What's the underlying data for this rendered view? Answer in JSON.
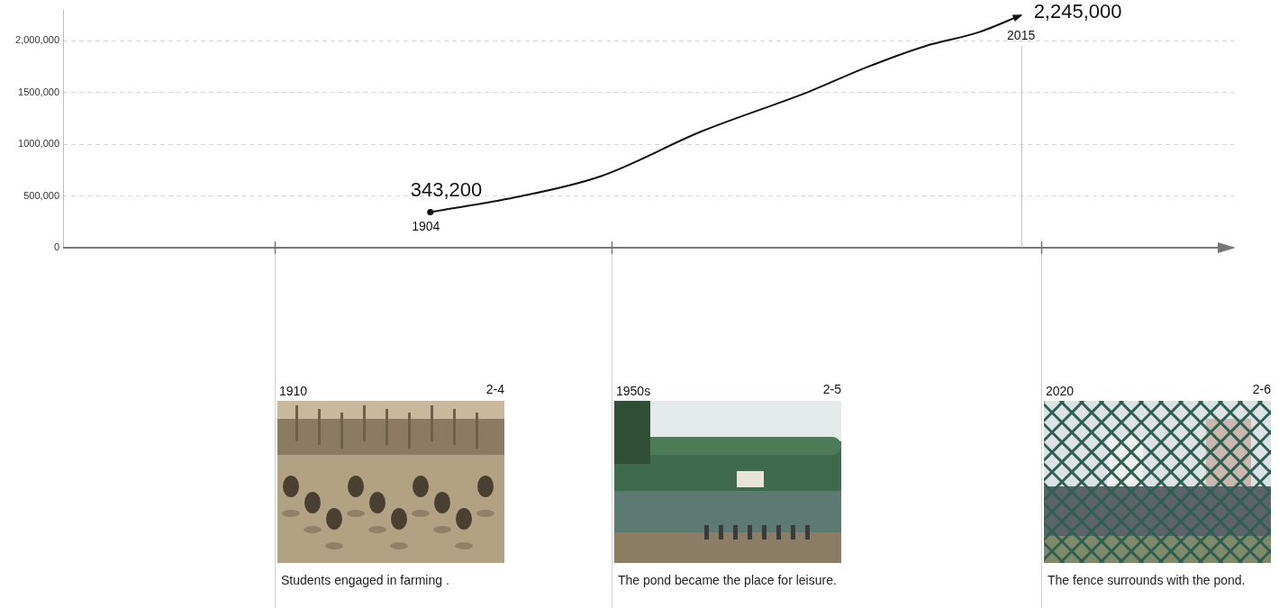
{
  "chart_data": {
    "type": "line",
    "x": [
      1904,
      1920,
      1936,
      1955,
      1975,
      1986,
      1997,
      2007,
      2015
    ],
    "values": [
      343200,
      487000,
      690000,
      1124000,
      1504000,
      1743000,
      1947000,
      2080000,
      2245000
    ],
    "color": "#111111",
    "xlim": [
      1835,
      2055
    ],
    "xticks": [],
    "ylim": [
      0,
      2300000
    ],
    "yticks": [
      0,
      {
        "value": 500000,
        "label": "500,000"
      },
      {
        "value": 1000000,
        "label": "1000,000"
      },
      {
        "value": 1500000,
        "label": "1500,000"
      },
      {
        "value": 2000000,
        "label": "2,000,000"
      }
    ],
    "grid": true,
    "tick_labels": "y",
    "annotations": [
      {
        "x": 1904,
        "y": 343200,
        "label": "343,200",
        "x_label": "1904"
      },
      {
        "x": 2015,
        "y": 2245000,
        "label": "2,245,000",
        "x_label": "2015"
      }
    ]
  },
  "timeline": [
    {
      "year": "1910",
      "figure": "2-4",
      "caption": "Students engaged in farming ."
    },
    {
      "year": "1950s",
      "figure": "2-5",
      "caption": "The pond became the place for leisure."
    },
    {
      "year": "2020",
      "figure": "2-6",
      "caption": "The fence surrounds with the pond."
    }
  ]
}
